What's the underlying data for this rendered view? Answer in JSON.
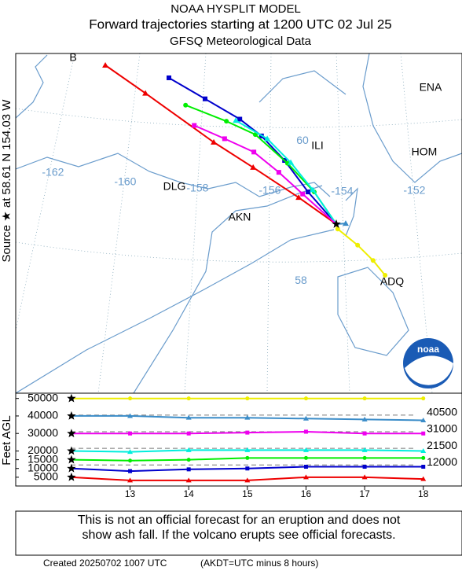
{
  "header": {
    "title": "NOAA HYSPLIT MODEL",
    "subtitle": "Forward trajectories starting at 1200 UTC 02 Jul 25",
    "data_source": "GFSQ Meteorological Data"
  },
  "source_label": "Source ★ at 58.61 N 154.03 W",
  "map": {
    "source": {
      "lat": 58.61,
      "lon": -154.03
    },
    "lon_labels": [
      -162,
      -160,
      -158,
      -156,
      -154,
      -152
    ],
    "lat_labels": [
      60,
      58
    ],
    "places": [
      "B",
      "ENA",
      "ILI",
      "HOM",
      "DLG",
      "AKN",
      "ADQ"
    ],
    "logo": "noaa",
    "trajectories": [
      {
        "color": "#ee0000",
        "marker": "triangle",
        "lon": [
          -155.07,
          -156.33,
          -157.42,
          -159.31,
          -160.42
        ],
        "lat": [
          58.99,
          59.42,
          59.78,
          60.48,
          60.88
        ]
      },
      {
        "color": "#0000cc",
        "marker": "square",
        "lon": [
          -154.81,
          -155.46,
          -156.1,
          -156.7,
          -157.66,
          -158.66
        ],
        "lat": [
          59.07,
          59.52,
          59.87,
          60.11,
          60.4,
          60.7
        ]
      },
      {
        "color": "#00ee00",
        "marker": "circle",
        "lon": [
          -154.64,
          -155.38,
          -156.27,
          -157.07,
          -158.2
        ],
        "lat": [
          59.07,
          59.48,
          59.89,
          60.08,
          60.31
        ]
      },
      {
        "color": "#00eedd",
        "marker": "triangle",
        "lon": [
          -154.68,
          -155.29,
          -155.94,
          -156.81
        ],
        "lat": [
          59.1,
          59.49,
          59.83,
          60.09
        ]
      },
      {
        "color": "#ee00ee",
        "marker": "square",
        "lon": [
          -154.96,
          -155.62,
          -156.31,
          -157.12,
          -157.96
        ],
        "lat": [
          59.04,
          59.35,
          59.64,
          59.83,
          60.02
        ]
      },
      {
        "color": "#3a8cc8",
        "marker": "triangle",
        "lon": [
          -153.77
        ],
        "lat": [
          58.62
        ]
      },
      {
        "color": "#eeee00",
        "marker": "circle",
        "lon": [
          -153.99,
          -153.44,
          -153.01,
          -152.68
        ],
        "lat": [
          58.54,
          58.31,
          58.09,
          57.88
        ]
      }
    ]
  },
  "chart_data": {
    "type": "line",
    "y_label": "Feet AGL",
    "x": [
      12,
      13,
      14,
      15,
      16,
      17,
      18
    ],
    "xlim": [
      11.05,
      18.66
    ],
    "xticks": [
      13,
      14,
      15,
      16,
      17,
      18
    ],
    "ylim": [
      0,
      53000
    ],
    "yticks": [
      5000,
      10000,
      15000,
      20000,
      30000,
      40000,
      50000
    ],
    "ref_lines": [
      40500,
      31000,
      21500,
      12000
    ],
    "series": [
      {
        "color": "#ee0000",
        "marker": "triangle",
        "values": [
          5000,
          3200,
          3200,
          3200,
          5000,
          5000,
          4000
        ]
      },
      {
        "color": "#0000cc",
        "marker": "square",
        "values": [
          10000,
          8500,
          9500,
          10000,
          11000,
          11000,
          11000
        ]
      },
      {
        "color": "#00ee00",
        "marker": "circle",
        "values": [
          15000,
          14500,
          15000,
          16000,
          16000,
          16000,
          16000
        ]
      },
      {
        "color": "#00eedd",
        "marker": "triangle",
        "values": [
          20000,
          19500,
          20500,
          20500,
          20500,
          20500,
          20000
        ]
      },
      {
        "color": "#ee00ee",
        "marker": "square",
        "values": [
          30000,
          30000,
          30000,
          30500,
          31000,
          30000,
          30000
        ]
      },
      {
        "color": "#3a8cc8",
        "marker": "triangle",
        "values": [
          40000,
          40000,
          39000,
          39000,
          38500,
          38000,
          37500
        ]
      },
      {
        "color": "#eeee00",
        "marker": "circle",
        "values": [
          50000,
          50000,
          50000,
          50000,
          50000,
          50000,
          50000
        ]
      }
    ]
  },
  "footer": {
    "notice_line1": "This is not an official forecast for an eruption and does not",
    "notice_line2": "show ash fall. If the volcano erupts see official forecasts.",
    "created": "Created 20250702 1007 UTC",
    "time_note": "(AKDT=UTC minus 8 hours)"
  }
}
